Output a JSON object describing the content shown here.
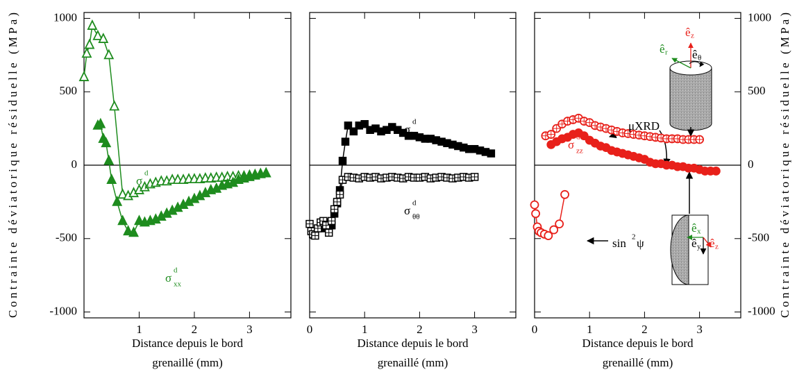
{
  "chart_data": [
    {
      "type": "scatter",
      "xlim": [
        0,
        3.75
      ],
      "ylim": [
        -1040,
        1040
      ],
      "xticks": [
        1,
        2,
        3
      ],
      "yticks": [
        -1000,
        -500,
        0,
        500,
        1000
      ],
      "ytick_side": "left",
      "hline": 0,
      "ylabel": "Contrainte  déviatorique  résiduelle  (MPa)",
      "xlabel": [
        "Distance depuis le bord",
        "grenaillé (mm)"
      ],
      "series": [
        {
          "marker": "triangle-open",
          "color": "#1e8c1e",
          "label": {
            "symbol": "σ",
            "sup": "d",
            "sub": "rr"
          },
          "x": [
            0,
            0.05,
            0.1,
            0.15,
            0.25,
            0.35,
            0.45,
            0.55,
            0.7,
            0.8,
            0.9,
            1.0,
            1.1,
            1.2,
            1.3,
            1.4,
            1.5,
            1.6,
            1.7,
            1.8,
            1.9,
            2.0,
            2.1,
            2.2,
            2.3,
            2.4,
            2.5,
            2.6,
            2.7,
            2.8,
            2.9,
            3.0,
            3.1,
            3.2,
            3.3
          ],
          "values": [
            600,
            760,
            820,
            950,
            880,
            860,
            750,
            400,
            -200,
            -210,
            -190,
            -170,
            -150,
            -130,
            -120,
            -110,
            -110,
            -100,
            -100,
            -100,
            -95,
            -95,
            -95,
            -90,
            -90,
            -85,
            -85,
            -80,
            -80,
            -75,
            -75,
            -70,
            -65,
            -60,
            -55
          ]
        },
        {
          "marker": "triangle",
          "color": "#1e8c1e",
          "label": {
            "symbol": "σ",
            "sup": "d",
            "sub": "xx"
          },
          "x": [
            0.25,
            0.3,
            0.35,
            0.4,
            0.45,
            0.5,
            0.6,
            0.7,
            0.8,
            0.9,
            1.0,
            1.1,
            1.2,
            1.3,
            1.4,
            1.5,
            1.6,
            1.7,
            1.8,
            1.9,
            2.0,
            2.1,
            2.2,
            2.3,
            2.4,
            2.5,
            2.6,
            2.7,
            2.8,
            2.9,
            3.0,
            3.1,
            3.2,
            3.3
          ],
          "values": [
            270,
            280,
            180,
            150,
            30,
            -100,
            -250,
            -380,
            -450,
            -460,
            -380,
            -390,
            -380,
            -370,
            -350,
            -330,
            -310,
            -290,
            -270,
            -250,
            -230,
            -210,
            -190,
            -170,
            -160,
            -140,
            -130,
            -120,
            -100,
            -90,
            -80,
            -70,
            -60,
            -55
          ]
        }
      ]
    },
    {
      "type": "scatter",
      "xlim": [
        0,
        3.75
      ],
      "ylim": [
        -1040,
        1040
      ],
      "xticks": [
        0,
        1,
        2,
        3
      ],
      "yticks": [
        -1000,
        -500,
        0,
        500,
        1000
      ],
      "ytick_side": "none",
      "hline": 0,
      "xlabel": [
        "Distance depuis le bord",
        "grenaillé (mm)"
      ],
      "series": [
        {
          "marker": "square",
          "color": "#000000",
          "label": {
            "symbol": "σ",
            "sup": "d",
            "sub": "yy"
          },
          "x": [
            0.25,
            0.3,
            0.4,
            0.45,
            0.5,
            0.55,
            0.6,
            0.65,
            0.7,
            0.8,
            0.9,
            1.0,
            1.1,
            1.2,
            1.3,
            1.4,
            1.5,
            1.6,
            1.7,
            1.8,
            1.9,
            2.0,
            2.1,
            2.2,
            2.3,
            2.4,
            2.5,
            2.6,
            2.7,
            2.8,
            2.9,
            3.0,
            3.1,
            3.2,
            3.3
          ],
          "values": [
            -430,
            -390,
            -410,
            -330,
            -260,
            -170,
            30,
            160,
            270,
            230,
            270,
            280,
            240,
            250,
            230,
            240,
            260,
            240,
            220,
            200,
            200,
            190,
            180,
            180,
            170,
            160,
            150,
            140,
            130,
            120,
            110,
            110,
            100,
            90,
            80
          ]
        },
        {
          "marker": "square-cross",
          "color": "#000000",
          "label": {
            "symbol": "σ",
            "sup": "d",
            "sub": "θθ"
          },
          "x": [
            0,
            0.03,
            0.06,
            0.1,
            0.15,
            0.2,
            0.25,
            0.3,
            0.35,
            0.4,
            0.45,
            0.5,
            0.55,
            0.6,
            0.7,
            0.8,
            0.9,
            1.0,
            1.1,
            1.2,
            1.3,
            1.4,
            1.5,
            1.6,
            1.7,
            1.8,
            1.9,
            2.0,
            2.1,
            2.2,
            2.3,
            2.4,
            2.5,
            2.6,
            2.7,
            2.8,
            2.9,
            3.0
          ],
          "values": [
            -400,
            -450,
            -470,
            -480,
            -430,
            -390,
            -380,
            -410,
            -460,
            -380,
            -300,
            -250,
            -200,
            -100,
            -80,
            -85,
            -90,
            -80,
            -85,
            -80,
            -90,
            -85,
            -80,
            -85,
            -90,
            -80,
            -85,
            -85,
            -80,
            -90,
            -85,
            -80,
            -85,
            -90,
            -85,
            -80,
            -85,
            -80
          ]
        }
      ]
    },
    {
      "type": "scatter",
      "xlim": [
        0,
        3.75
      ],
      "ylim": [
        -1040,
        1040
      ],
      "xticks": [
        0,
        1,
        2,
        3
      ],
      "yticks": [
        -1000,
        -500,
        0,
        500,
        1000
      ],
      "ytick_side": "right",
      "hline": 0,
      "ylabel": "Contrainte  déviatorique  résiduelle  (MPa)",
      "xlabel": [
        "Distance depuis le bord",
        "grenaillé (mm)"
      ],
      "series": [
        {
          "marker": "circle-cross",
          "color": "#e8201a",
          "label": {
            "symbol": "σ",
            "sup": "d",
            "sub": "zz"
          },
          "x": [
            0.2,
            0.3,
            0.4,
            0.5,
            0.6,
            0.7,
            0.8,
            0.9,
            1.0,
            1.1,
            1.2,
            1.3,
            1.4,
            1.5,
            1.6,
            1.7,
            1.8,
            1.9,
            2.0,
            2.1,
            2.2,
            2.3,
            2.4,
            2.5,
            2.6,
            2.7,
            2.8,
            2.9,
            3.0
          ],
          "values": [
            200,
            210,
            250,
            280,
            300,
            310,
            320,
            300,
            290,
            270,
            260,
            250,
            240,
            230,
            220,
            215,
            210,
            205,
            200,
            195,
            190,
            185,
            180,
            180,
            180,
            175,
            175,
            175,
            175
          ]
        },
        {
          "marker": "circle",
          "color": "#e8201a",
          "x": [
            0.3,
            0.4,
            0.5,
            0.6,
            0.7,
            0.8,
            0.9,
            1.0,
            1.1,
            1.2,
            1.3,
            1.4,
            1.5,
            1.6,
            1.7,
            1.8,
            1.9,
            2.0,
            2.1,
            2.2,
            2.3,
            2.4,
            2.5,
            2.6,
            2.7,
            2.8,
            2.9,
            3.0,
            3.1,
            3.2,
            3.3
          ],
          "values": [
            140,
            160,
            180,
            190,
            210,
            220,
            200,
            170,
            150,
            130,
            120,
            100,
            90,
            80,
            70,
            60,
            50,
            40,
            20,
            10,
            10,
            0,
            0,
            -10,
            -10,
            -20,
            -20,
            -30,
            -40,
            -40,
            -40
          ]
        },
        {
          "marker": "circle-open",
          "color": "#e8201a",
          "x": [
            0,
            0.02,
            0.05,
            0.08,
            0.12,
            0.18,
            0.25,
            0.35,
            0.45,
            0.55
          ],
          "values": [
            -270,
            -330,
            -420,
            -450,
            -460,
            -470,
            -480,
            -440,
            -400,
            -200
          ]
        }
      ],
      "annotations": {
        "method": "μXRD",
        "sin2psi": {
          "base": "sin",
          "sup": "2",
          "end": "ψ"
        },
        "basis": {
          "e": "ê",
          "z": "z",
          "r": "r",
          "theta": "θ",
          "x": "x",
          "y": "y"
        }
      }
    }
  ]
}
